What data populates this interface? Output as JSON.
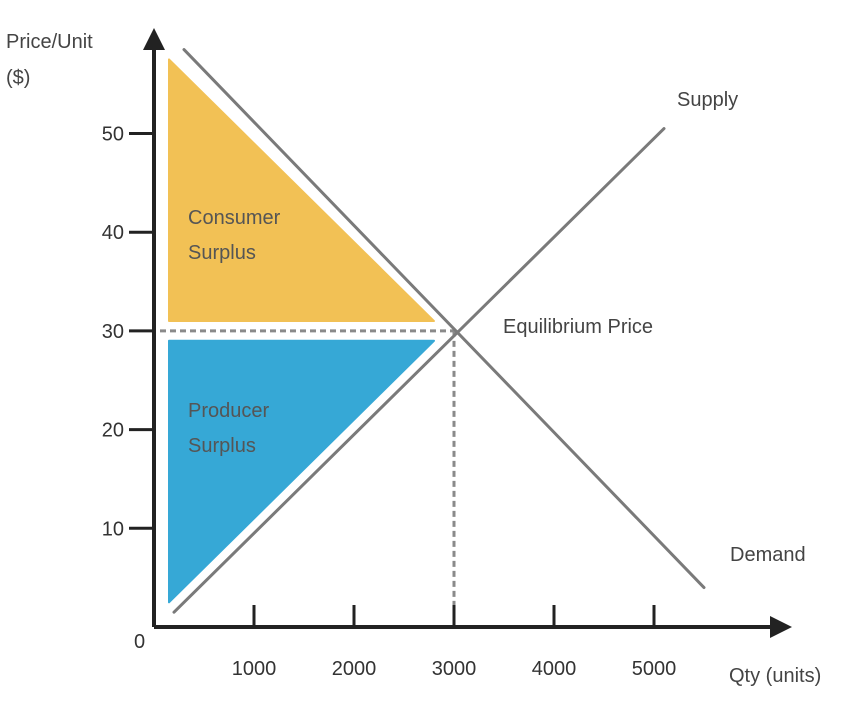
{
  "chart_data": {
    "type": "line",
    "title": "",
    "ylabel": [
      "Price/Unit",
      "($)"
    ],
    "xlabel": "Qty (units)",
    "origin_label": "0",
    "x_ticks": [
      {
        "value": 1000,
        "label": "1000"
      },
      {
        "value": 2000,
        "label": "2000"
      },
      {
        "value": 3000,
        "label": "3000"
      },
      {
        "value": 4000,
        "label": "4000"
      },
      {
        "value": 5000,
        "label": "5000"
      }
    ],
    "y_ticks": [
      {
        "value": 10,
        "label": "10"
      },
      {
        "value": 20,
        "label": "20"
      },
      {
        "value": 30,
        "label": "30"
      },
      {
        "value": 40,
        "label": "40"
      },
      {
        "value": 50,
        "label": "50"
      }
    ],
    "xlim": [
      0,
      6000
    ],
    "ylim": [
      0,
      60
    ],
    "series": [
      {
        "name": "Supply",
        "x": [
          200,
          5100
        ],
        "y": [
          1.5,
          50.5
        ]
      },
      {
        "name": "Demand",
        "x": [
          300,
          5500
        ],
        "y": [
          58.5,
          4
        ]
      }
    ],
    "equilibrium": {
      "x": 3000,
      "y": 30,
      "label": "Equilibrium Price"
    },
    "regions": [
      {
        "name": "consumer-surplus",
        "label": [
          "Consumer",
          "Surplus"
        ],
        "color": "#F2C155",
        "points": [
          [
            150,
            57.5
          ],
          [
            150,
            31
          ],
          [
            2800,
            31
          ]
        ]
      },
      {
        "name": "producer-surplus",
        "label": [
          "Producer",
          "Surplus"
        ],
        "color": "#36A8D6",
        "points": [
          [
            150,
            29
          ],
          [
            2800,
            29
          ],
          [
            150,
            2.5
          ]
        ]
      }
    ],
    "grid": false,
    "colors": {
      "axis": "#222222",
      "curve": "#7a7a7a",
      "guide": "#8a8a8a"
    }
  }
}
